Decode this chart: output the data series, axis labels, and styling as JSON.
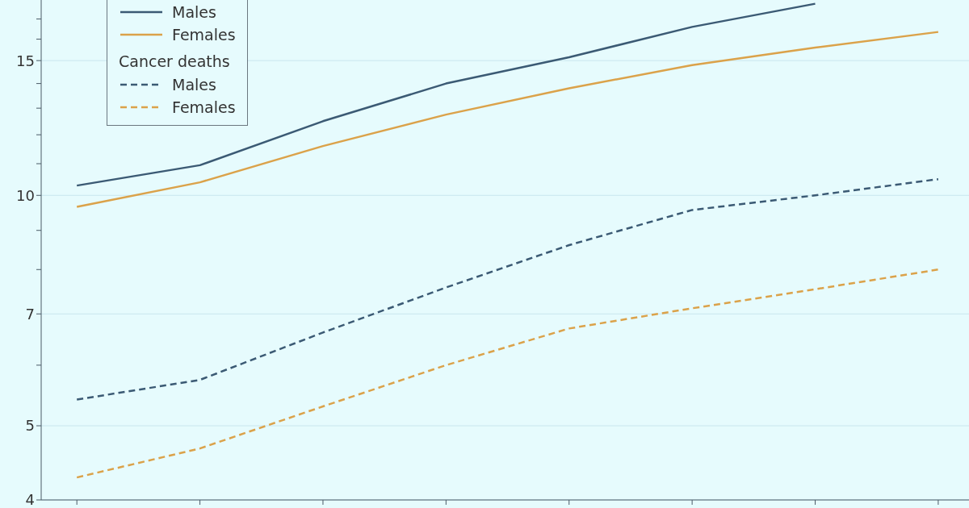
{
  "chart_data": {
    "type": "line",
    "categories": [
      null,
      null,
      null,
      null,
      null,
      null,
      null,
      null
    ],
    "series": [
      {
        "name": "Males",
        "color": "#3b5a74",
        "line_style": "solid",
        "values": [
          10.3,
          10.95,
          12.5,
          14.0,
          15.15,
          16.6,
          17.8,
          null
        ]
      },
      {
        "name": "Females",
        "color": "#dba24a",
        "line_style": "solid",
        "values": [
          9.66,
          10.4,
          11.6,
          12.75,
          13.8,
          14.8,
          15.6,
          16.35
        ]
      },
      {
        "name": "Males",
        "color": "#3b5a74",
        "line_style": "dashed",
        "values": [
          5.41,
          5.74,
          6.62,
          7.58,
          8.61,
          9.57,
          10.0,
          10.5
        ]
      },
      {
        "name": "Females",
        "color": "#dba24a",
        "line_style": "dashed",
        "values": [
          4.28,
          4.67,
          5.3,
          6.0,
          6.7,
          7.12,
          7.54,
          8.0
        ]
      }
    ],
    "annotations": [
      "Cancer deaths"
    ],
    "log": "y",
    "ylim": [
      4,
      18
    ],
    "yticks": [
      4,
      5,
      {
        "value": 6,
        "label": null
      },
      7,
      {
        "value": 8,
        "label": null
      },
      {
        "value": 9,
        "label": null
      },
      10,
      {
        "value": 11,
        "label": null
      },
      {
        "value": 12,
        "label": null
      },
      {
        "value": 13,
        "label": null
      },
      {
        "value": 14,
        "label": null
      },
      15,
      {
        "value": 16,
        "label": null
      },
      {
        "value": 17,
        "label": null
      }
    ],
    "grid": "y",
    "legend": "top left",
    "tick_labels": "y"
  }
}
